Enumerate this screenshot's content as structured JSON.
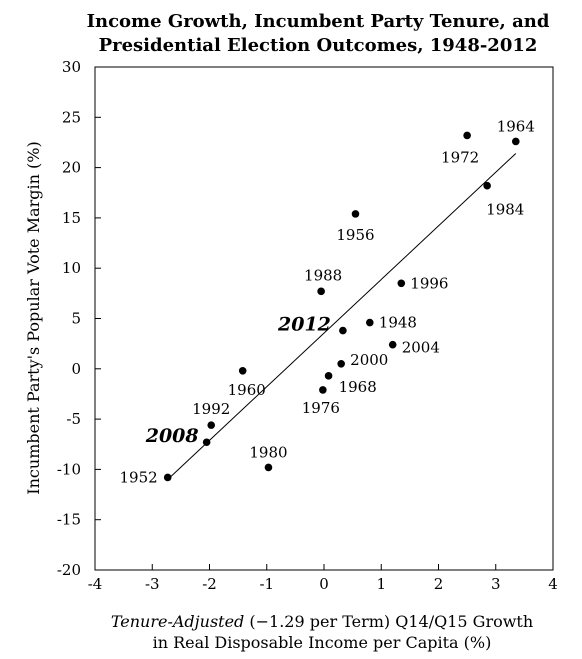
{
  "chart_data": {
    "type": "scatter",
    "title": [
      "Income Growth, Incumbent Party Tenure, and",
      "Presidential Election Outcomes, 1948-2012"
    ],
    "xlabel_italic": "Tenure-Adjusted",
    "xlabel_rest": " (−1.29 per Term) Q14/Q15  Growth",
    "xlabel_line2": "in Real Disposable Income per Capita (%)",
    "ylabel": "Incumbent Party's Popular Vote Margin (%)",
    "xlim": [
      -4,
      4
    ],
    "ylim": [
      -20,
      30
    ],
    "xticks": [
      -4,
      -3,
      -2,
      -1,
      0,
      1,
      2,
      3,
      4
    ],
    "yticks": [
      -20,
      -15,
      -10,
      -5,
      0,
      5,
      10,
      15,
      20,
      25,
      30
    ],
    "grid": false,
    "points": [
      {
        "label": "1948",
        "x": 0.8,
        "y": 4.6
      },
      {
        "label": "1952",
        "x": -2.73,
        "y": -10.8
      },
      {
        "label": "1956",
        "x": 0.55,
        "y": 15.4
      },
      {
        "label": "1960",
        "x": -1.42,
        "y": -0.2
      },
      {
        "label": "1964",
        "x": 3.35,
        "y": 22.6
      },
      {
        "label": "1968",
        "x": 0.08,
        "y": -0.7
      },
      {
        "label": "1972",
        "x": 2.5,
        "y": 23.2
      },
      {
        "label": "1976",
        "x": -0.02,
        "y": -2.1
      },
      {
        "label": "1980",
        "x": -0.97,
        "y": -9.8
      },
      {
        "label": "1984",
        "x": 2.85,
        "y": 18.2
      },
      {
        "label": "1988",
        "x": -0.05,
        "y": 7.7
      },
      {
        "label": "1992",
        "x": -1.97,
        "y": -5.6
      },
      {
        "label": "1996",
        "x": 1.35,
        "y": 8.5
      },
      {
        "label": "2000",
        "x": 0.3,
        "y": 0.5
      },
      {
        "label": "2004",
        "x": 1.2,
        "y": 2.4
      },
      {
        "label": "2008",
        "x": -2.05,
        "y": -7.3
      },
      {
        "label": "2012",
        "x": 0.33,
        "y": 3.8
      }
    ],
    "fit_line": {
      "x1": -2.73,
      "y1": -11.0,
      "x2": 3.35,
      "y2": 21.4
    }
  }
}
